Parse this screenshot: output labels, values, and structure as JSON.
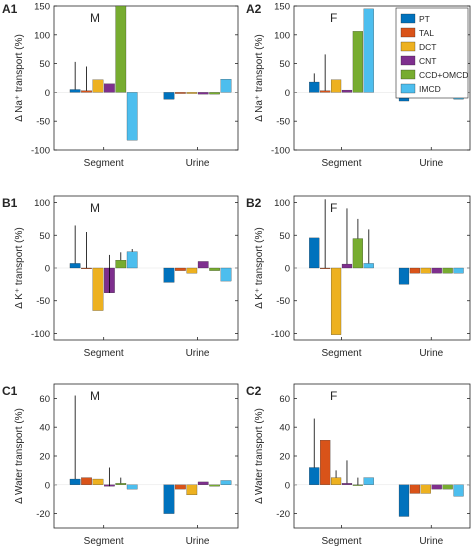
{
  "colors": {
    "PT": "#0072BD",
    "TAL": "#D95319",
    "DCT": "#EDB120",
    "CNT": "#7E2F8E",
    "CCD+OMCD": "#77AC30",
    "IMCD": "#4DBEEE"
  },
  "legend": {
    "entries": [
      "PT",
      "TAL",
      "DCT",
      "CNT",
      "CCD+OMCD",
      "IMCD"
    ],
    "placement": "top-right of panel A2"
  },
  "chart_data": [
    {
      "panel": "A1",
      "sex": "M",
      "type": "bar",
      "ylabel": "Δ Na⁺ transport (%)",
      "ylim": [
        -100,
        150
      ],
      "yticks": [
        -100,
        -50,
        0,
        50,
        100,
        150
      ],
      "categories": [
        "Segment",
        "Urine"
      ],
      "series": [
        {
          "name": "PT",
          "values": [
            5,
            -12
          ],
          "err": [
            48,
            0
          ]
        },
        {
          "name": "TAL",
          "values": [
            3,
            -2
          ],
          "err": [
            42,
            0
          ]
        },
        {
          "name": "DCT",
          "values": [
            22,
            -2
          ],
          "err": [
            0,
            0
          ]
        },
        {
          "name": "CNT",
          "values": [
            15,
            -3
          ],
          "err": [
            0,
            0
          ]
        },
        {
          "name": "CCD+OMCD",
          "values": [
            150,
            -3
          ],
          "err": [
            0,
            0
          ]
        },
        {
          "name": "IMCD",
          "values": [
            -83,
            23
          ],
          "err": [
            0,
            0
          ]
        }
      ]
    },
    {
      "panel": "A2",
      "sex": "F",
      "type": "bar",
      "ylabel": "Δ Na⁺ transport (%)",
      "ylim": [
        -100,
        150
      ],
      "yticks": [
        -100,
        -50,
        0,
        50,
        100,
        150
      ],
      "categories": [
        "Segment",
        "Urine"
      ],
      "series": [
        {
          "name": "PT",
          "values": [
            18,
            -15
          ],
          "err": [
            15,
            0
          ]
        },
        {
          "name": "TAL",
          "values": [
            3,
            -3
          ],
          "err": [
            63,
            0
          ]
        },
        {
          "name": "DCT",
          "values": [
            22,
            -3
          ],
          "err": [
            0,
            0
          ]
        },
        {
          "name": "CNT",
          "values": [
            4,
            -3
          ],
          "err": [
            0,
            0
          ]
        },
        {
          "name": "CCD+OMCD",
          "values": [
            106,
            -3
          ],
          "err": [
            0,
            0
          ]
        },
        {
          "name": "IMCD",
          "values": [
            145,
            -12
          ],
          "err": [
            0,
            0
          ]
        }
      ]
    },
    {
      "panel": "B1",
      "sex": "M",
      "type": "bar",
      "ylabel": "Δ K⁺ transport (%)",
      "ylim": [
        -110,
        110
      ],
      "yticks": [
        -100,
        -50,
        0,
        50,
        100
      ],
      "categories": [
        "Segment",
        "Urine"
      ],
      "series": [
        {
          "name": "PT",
          "values": [
            7,
            -22
          ],
          "err": [
            58,
            0
          ]
        },
        {
          "name": "TAL",
          "values": [
            0,
            -4
          ],
          "err": [
            55,
            0
          ]
        },
        {
          "name": "DCT",
          "values": [
            -65,
            -8
          ],
          "err": [
            0,
            0
          ]
        },
        {
          "name": "CNT",
          "values": [
            -38,
            10
          ],
          "err": [
            20,
            0
          ]
        },
        {
          "name": "CCD+OMCD",
          "values": [
            12,
            -4
          ],
          "err": [
            12,
            0
          ]
        },
        {
          "name": "IMCD",
          "values": [
            25,
            -20
          ],
          "err": [
            4,
            0
          ]
        }
      ]
    },
    {
      "panel": "B2",
      "sex": "F",
      "type": "bar",
      "ylabel": "Δ K⁺ transport (%)",
      "ylim": [
        -110,
        110
      ],
      "yticks": [
        -100,
        -50,
        0,
        50,
        100
      ],
      "categories": [
        "Segment",
        "Urine"
      ],
      "series": [
        {
          "name": "PT",
          "values": [
            46,
            -25
          ],
          "err": [
            0,
            0
          ]
        },
        {
          "name": "TAL",
          "values": [
            0,
            -8
          ],
          "err": [
            105,
            0
          ]
        },
        {
          "name": "DCT",
          "values": [
            -102,
            -8
          ],
          "err": [
            0,
            0
          ]
        },
        {
          "name": "CNT",
          "values": [
            6,
            -8
          ],
          "err": [
            85,
            0
          ]
        },
        {
          "name": "CCD+OMCD",
          "values": [
            45,
            -8
          ],
          "err": [
            30,
            0
          ]
        },
        {
          "name": "IMCD",
          "values": [
            7,
            -8
          ],
          "err": [
            52,
            0
          ]
        }
      ]
    },
    {
      "panel": "C1",
      "sex": "M",
      "type": "bar",
      "ylabel": "Δ Water transport (%)",
      "ylim": [
        -30,
        70
      ],
      "yticks": [
        -20,
        0,
        20,
        40,
        60
      ],
      "categories": [
        "Segment",
        "Urine"
      ],
      "series": [
        {
          "name": "PT",
          "values": [
            4,
            -20
          ],
          "err": [
            58,
            0
          ]
        },
        {
          "name": "TAL",
          "values": [
            5,
            -3
          ],
          "err": [
            0,
            0
          ]
        },
        {
          "name": "DCT",
          "values": [
            4,
            -7
          ],
          "err": [
            0,
            0
          ]
        },
        {
          "name": "CNT",
          "values": [
            -1,
            2
          ],
          "err": [
            12,
            0
          ]
        },
        {
          "name": "CCD+OMCD",
          "values": [
            1,
            -1
          ],
          "err": [
            4,
            0
          ]
        },
        {
          "name": "IMCD",
          "values": [
            -3,
            3
          ],
          "err": [
            0,
            0
          ]
        }
      ]
    },
    {
      "panel": "C2",
      "sex": "F",
      "type": "bar",
      "ylabel": "Δ Water transport (%)",
      "ylim": [
        -30,
        70
      ],
      "yticks": [
        -20,
        0,
        20,
        40,
        60
      ],
      "categories": [
        "Segment",
        "Urine"
      ],
      "series": [
        {
          "name": "PT",
          "values": [
            12,
            -22
          ],
          "err": [
            34,
            0
          ]
        },
        {
          "name": "TAL",
          "values": [
            31,
            -6
          ],
          "err": [
            0,
            0
          ]
        },
        {
          "name": "DCT",
          "values": [
            5,
            -6
          ],
          "err": [
            5,
            0
          ]
        },
        {
          "name": "CNT",
          "values": [
            1,
            -3
          ],
          "err": [
            16,
            0
          ]
        },
        {
          "name": "CCD+OMCD",
          "values": [
            0,
            -3
          ],
          "err": [
            5,
            0
          ]
        },
        {
          "name": "IMCD",
          "values": [
            5,
            -8
          ],
          "err": [
            0,
            0
          ]
        }
      ]
    }
  ]
}
